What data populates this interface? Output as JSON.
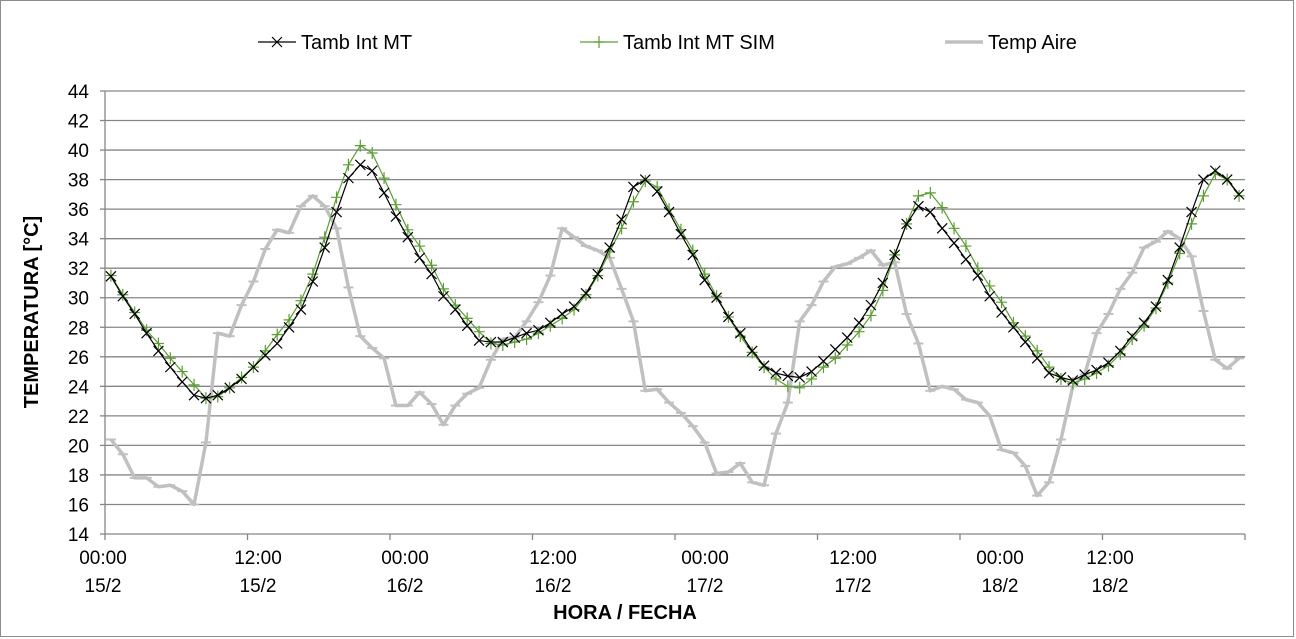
{
  "chart_data": {
    "type": "line",
    "title": "",
    "xlabel": "HORA / FECHA",
    "ylabel": "TEMPERATURA [°C]",
    "ylim": [
      14,
      44
    ],
    "yticks": [
      14,
      16,
      18,
      20,
      22,
      24,
      26,
      28,
      30,
      32,
      34,
      36,
      38,
      40,
      42,
      44
    ],
    "xlim_hours": [
      0,
      96
    ],
    "x_tick_labels": [
      {
        "time": "00:00",
        "date": "15/2"
      },
      {
        "time": "12:00",
        "date": "15/2"
      },
      {
        "time": "00:00",
        "date": "16/2"
      },
      {
        "time": "12:00",
        "date": "16/2"
      },
      {
        "time": "00:00",
        "date": "17/2"
      },
      {
        "time": "12:00",
        "date": "17/2"
      },
      {
        "time": "00:00",
        "date": "18/2"
      },
      {
        "time": "12:00",
        "date": "18/2"
      }
    ],
    "grid": "horizontal",
    "legend_position": "top",
    "x_hours_start": 0.5,
    "x_step_hours": 1,
    "series": [
      {
        "name": "Tamb Int MT",
        "color": "#000000",
        "marker": "x",
        "values": [
          31.45,
          30.1,
          28.9,
          27.6,
          26.4,
          25.3,
          24.3,
          23.4,
          23.2,
          23.4,
          23.9,
          24.5,
          25.3,
          26.1,
          26.9,
          28.0,
          29.2,
          31.1,
          33.4,
          35.8,
          38.1,
          39.0,
          38.6,
          37.1,
          35.5,
          34.1,
          32.7,
          31.6,
          30.1,
          29.2,
          28.1,
          27.1,
          27.0,
          27.0,
          27.3,
          27.6,
          27.8,
          28.3,
          28.9,
          29.4,
          30.3,
          31.6,
          33.4,
          35.3,
          37.5,
          38.0,
          37.2,
          35.8,
          34.3,
          32.9,
          31.2,
          30.0,
          28.7,
          27.6,
          26.4,
          25.4,
          24.9,
          24.7,
          24.6,
          25.0,
          25.7,
          26.5,
          27.3,
          28.3,
          29.5,
          31.0,
          32.9,
          35.0,
          36.2,
          35.8,
          34.7,
          33.7,
          32.6,
          31.5,
          30.1,
          29.0,
          28.0,
          27.0,
          25.9,
          24.9,
          24.6,
          24.4,
          24.8,
          25.1,
          25.6,
          26.4,
          27.4,
          28.3,
          29.4,
          31.2,
          33.4,
          35.8,
          38.0,
          38.6,
          38.0,
          37.0
        ]
      },
      {
        "name": "Tamb Int MT SIM",
        "color": "#5a9e32",
        "marker": "+",
        "values": [
          31.5,
          30.2,
          29.0,
          27.8,
          26.9,
          25.9,
          25.0,
          24.1,
          23.2,
          23.3,
          23.9,
          24.6,
          25.3,
          26.4,
          27.5,
          28.5,
          29.8,
          31.6,
          34.1,
          36.8,
          39.0,
          40.3,
          39.8,
          38.1,
          36.3,
          34.6,
          33.5,
          32.2,
          30.6,
          29.5,
          28.6,
          27.7,
          26.9,
          26.8,
          27.0,
          27.2,
          27.6,
          28.1,
          28.6,
          29.2,
          30.2,
          31.5,
          33.1,
          34.7,
          36.5,
          37.9,
          37.5,
          36.0,
          34.6,
          33.2,
          31.6,
          30.1,
          28.7,
          27.4,
          26.3,
          25.3,
          24.5,
          24.0,
          23.9,
          24.5,
          25.3,
          25.9,
          26.8,
          27.7,
          28.8,
          30.5,
          32.9,
          35.0,
          36.9,
          37.1,
          36.1,
          34.7,
          33.5,
          32.0,
          30.8,
          29.7,
          28.3,
          27.4,
          26.4,
          25.3,
          24.5,
          24.2,
          24.5,
          24.9,
          25.4,
          26.2,
          27.2,
          28.1,
          29.3,
          31.0,
          33.0,
          35.0,
          36.9,
          38.4,
          38.0,
          36.9
        ]
      },
      {
        "name": "Temp Aire",
        "color": "#c0c0c0",
        "marker": "-",
        "values": [
          20.4,
          19.4,
          17.8,
          17.8,
          17.2,
          17.3,
          16.9,
          16.0,
          20.2,
          27.6,
          27.4,
          29.5,
          31.1,
          33.3,
          34.6,
          34.4,
          36.2,
          36.9,
          36.2,
          34.7,
          30.7,
          27.4,
          26.6,
          25.9,
          22.7,
          22.7,
          23.6,
          22.8,
          21.4,
          22.7,
          23.5,
          23.9,
          25.8,
          27.2,
          27.3,
          28.4,
          29.7,
          31.5,
          34.7,
          34.1,
          33.5,
          33.2,
          32.7,
          30.6,
          28.4,
          23.7,
          23.8,
          22.9,
          22.2,
          21.3,
          20.2,
          18.1,
          18.2,
          18.8,
          17.5,
          17.3,
          20.8,
          22.9,
          28.4,
          29.5,
          31.1,
          32.1,
          32.3,
          32.7,
          33.2,
          32.2,
          32.4,
          28.9,
          26.9,
          23.7,
          24.0,
          23.8,
          23.1,
          22.9,
          22.0,
          19.7,
          19.5,
          18.6,
          16.6,
          17.5,
          20.4,
          24.0,
          24.8,
          27.6,
          28.9,
          30.6,
          31.7,
          33.4,
          33.8,
          34.5,
          34.0,
          32.8,
          29.1,
          25.8,
          25.2,
          25.9
        ]
      }
    ]
  }
}
